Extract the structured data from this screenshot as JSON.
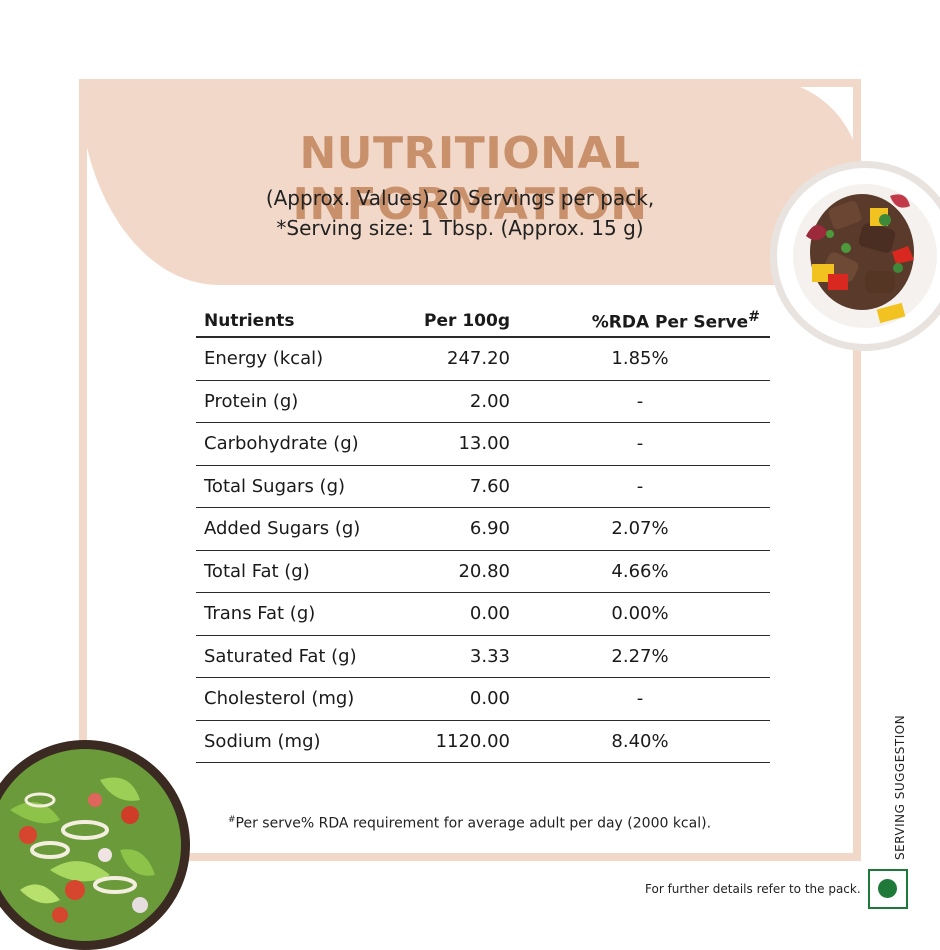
{
  "header": {
    "title": "NUTRITIONAL INFORMATION",
    "subtitle_line1": "(Approx. Values) 20 Servings per pack,",
    "subtitle_line2": "*Serving size: 1 Tbsp. (Approx. 15 g)"
  },
  "table": {
    "headers": {
      "nutrients": "Nutrients",
      "per100": "Per 100g",
      "rda": "%RDA Per Serve",
      "rda_mark": "#"
    },
    "rows": [
      {
        "name": "Energy (kcal)",
        "per100": "247.20",
        "rda": "1.85%"
      },
      {
        "name": "Protein (g)",
        "per100": "2.00",
        "rda": "-"
      },
      {
        "name": "Carbohydrate (g)",
        "per100": "13.00",
        "rda": "-"
      },
      {
        "name": "Total Sugars (g)",
        "per100": "7.60",
        "rda": "-"
      },
      {
        "name": "Added Sugars (g)",
        "per100": "6.90",
        "rda": "2.07%"
      },
      {
        "name": "Total Fat (g)",
        "per100": "20.80",
        "rda": "4.66%"
      },
      {
        "name": "Trans Fat (g)",
        "per100": "0.00",
        "rda": "0.00%"
      },
      {
        "name": "Saturated Fat (g)",
        "per100": "3.33",
        "rda": "2.27%"
      },
      {
        "name": "Cholesterol (mg)",
        "per100": "0.00",
        "rda": "-"
      },
      {
        "name": "Sodium (mg)",
        "per100": "1120.00",
        "rda": "8.40%"
      }
    ]
  },
  "footnote": {
    "mark": "#",
    "text": "Per serve% RDA requirement for average adult per day (2000 kcal)."
  },
  "serving_suggestion": "SERVING SUGGESTION",
  "further_details": "For further details refer to the pack.",
  "icons": {
    "veg_mark": "veg-symbol-icon",
    "top_image": "stir-fry-plate",
    "bottom_image": "salad-bowl"
  },
  "colors": {
    "accent_peach": "#f2d8c9",
    "title_brown": "#c8906b",
    "veg_green": "#1f7a3a"
  }
}
